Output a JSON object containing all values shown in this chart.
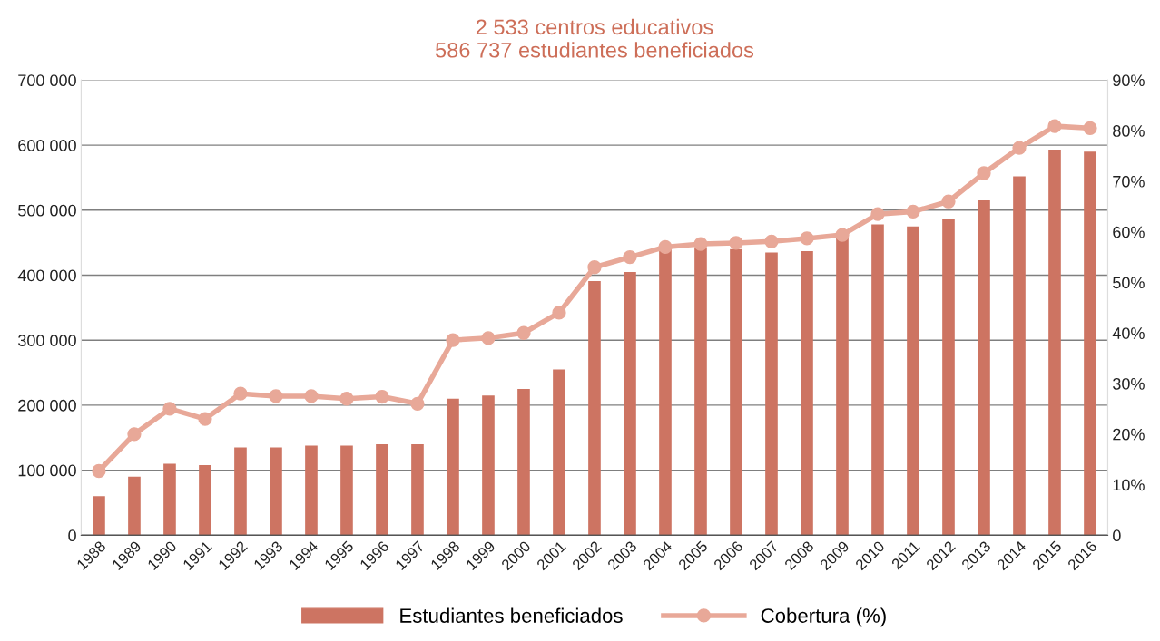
{
  "chart_data": {
    "type": "bar",
    "title": "2 533 centros educativos\n586 737 estudiantes beneficiados",
    "categories": [
      "1988",
      "1989",
      "1990",
      "1991",
      "1992",
      "1993",
      "1994",
      "1995",
      "1996",
      "1997",
      "1998",
      "1999",
      "2000",
      "2001",
      "2002",
      "2003",
      "2004",
      "2005",
      "2006",
      "2007",
      "2008",
      "2009",
      "2010",
      "2011",
      "2012",
      "2013",
      "2014",
      "2015",
      "2016"
    ],
    "series": [
      {
        "name": "Estudiantes beneficiados",
        "color": "#cd7462",
        "values": [
          60000,
          90000,
          110000,
          108000,
          135000,
          135000,
          138000,
          138000,
          140000,
          140000,
          210000,
          215000,
          225000,
          255000,
          391000,
          405000,
          440000,
          443000,
          440000,
          435000,
          437000,
          458000,
          478000,
          475000,
          487000,
          515000,
          552000,
          593000,
          590000
        ]
      },
      {
        "name": "Cobertura (%)",
        "type": "line",
        "axis": "y2",
        "color": "#e8a898",
        "marker": "circle",
        "values": [
          12.7,
          20,
          25,
          23,
          28,
          27.5,
          27.5,
          27,
          27.4,
          26,
          38.6,
          39,
          40,
          44,
          53,
          55,
          57,
          57.6,
          57.8,
          58.1,
          58.7,
          59.4,
          63.5,
          64,
          66,
          71.6,
          76.6,
          80.9,
          80.5
        ]
      }
    ],
    "ylim": [
      0,
      700000
    ],
    "yticks": [
      {
        "value": 0,
        "label": "0"
      },
      {
        "value": 100000,
        "label": "100 000"
      },
      {
        "value": 200000,
        "label": "200 000"
      },
      {
        "value": 300000,
        "label": "300 000"
      },
      {
        "value": 400000,
        "label": "400 000"
      },
      {
        "value": 500000,
        "label": "500 000"
      },
      {
        "value": 600000,
        "label": "600 000"
      },
      {
        "value": 700000,
        "label": "700 000"
      }
    ],
    "y2lim": [
      0,
      90
    ],
    "y2ticks": [
      {
        "value": 0,
        "label": "0"
      },
      {
        "value": 10,
        "label": "10%"
      },
      {
        "value": 20,
        "label": "20%"
      },
      {
        "value": 30,
        "label": "30%"
      },
      {
        "value": 40,
        "label": "40%"
      },
      {
        "value": 50,
        "label": "50%"
      },
      {
        "value": 60,
        "label": "60%"
      },
      {
        "value": 70,
        "label": "70%"
      },
      {
        "value": 80,
        "label": "80%"
      },
      {
        "value": 90,
        "label": "90%"
      }
    ],
    "grid": "y",
    "legend": "bottom"
  }
}
